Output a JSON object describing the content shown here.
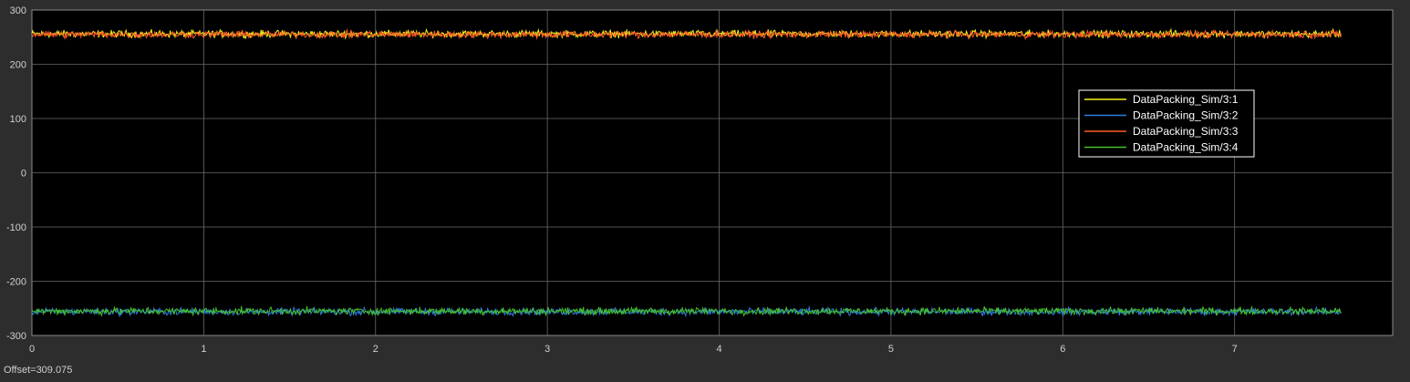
{
  "offset_label": "Offset=309.075",
  "colors": {
    "background": "#2d2d2d",
    "plot_area": "#000000",
    "grid": "#6a6a6a",
    "axis_text": "#cfcfcf",
    "legend_border": "#ffffff"
  },
  "chart_data": {
    "type": "line",
    "title": "",
    "xlabel": "",
    "ylabel": "",
    "xlim": [
      0,
      7.92
    ],
    "ylim": [
      -300,
      300
    ],
    "xticks": [
      0,
      1,
      2,
      3,
      4,
      5,
      6,
      7
    ],
    "xtick_labels": [
      "0",
      "1",
      "2",
      "3",
      "4",
      "5",
      "6",
      "7"
    ],
    "yticks": [
      300,
      200,
      100,
      0,
      -100,
      -200,
      -300
    ],
    "ytick_labels": [
      "300",
      "200",
      "100",
      "0",
      "-100",
      "-200",
      "-300"
    ],
    "grid": true,
    "legend_position": "upper-right",
    "x_end": 7.62,
    "series": [
      {
        "name": "DataPacking_Sim/3:1",
        "color": "#f2f21c",
        "mean": 256,
        "amplitude": 4
      },
      {
        "name": "DataPacking_Sim/3:2",
        "color": "#2f7de0",
        "mean": -256,
        "amplitude": 4
      },
      {
        "name": "DataPacking_Sim/3:3",
        "color": "#ff5a28",
        "mean": 255,
        "amplitude": 4
      },
      {
        "name": "DataPacking_Sim/3:4",
        "color": "#44c12c",
        "mean": -255,
        "amplitude": 4
      }
    ]
  }
}
